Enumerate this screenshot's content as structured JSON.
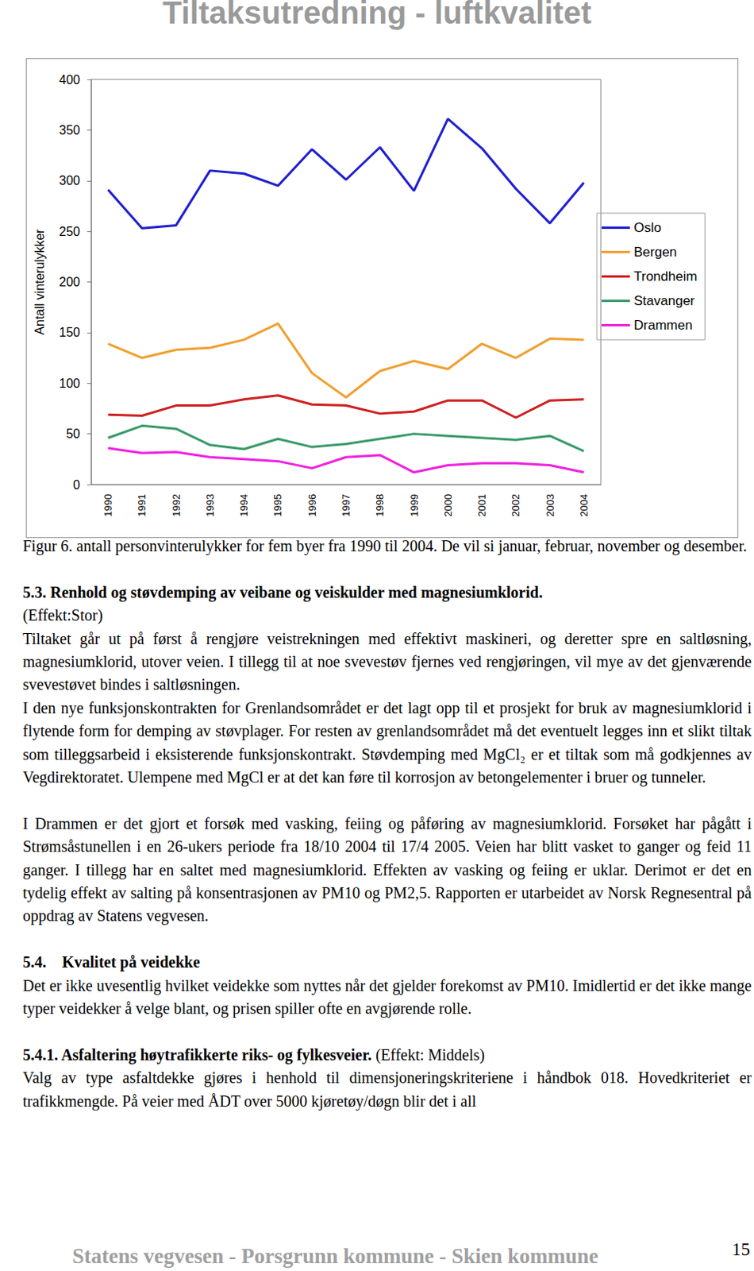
{
  "header": {
    "title": "Tiltaksutredning - luftkvalitet"
  },
  "chart_data": {
    "type": "line",
    "y_label": "Antall vinterulykker",
    "categories": [
      "1990",
      "1991",
      "1992",
      "1993",
      "1994",
      "1995",
      "1996",
      "1997",
      "1998",
      "1999",
      "2000",
      "2001",
      "2002",
      "2003",
      "2004"
    ],
    "series": [
      {
        "name": "Oslo",
        "color": "#1f1fd0",
        "values": [
          291,
          253,
          256,
          310,
          307,
          295,
          331,
          301,
          333,
          290,
          361,
          332,
          292,
          258,
          298
        ]
      },
      {
        "name": "Bergen",
        "color": "#f0a030",
        "values": [
          139,
          125,
          133,
          135,
          143,
          159,
          110,
          86,
          112,
          122,
          114,
          139,
          125,
          144,
          143
        ]
      },
      {
        "name": "Trondheim",
        "color": "#d02020",
        "values": [
          69,
          68,
          78,
          78,
          84,
          88,
          79,
          78,
          70,
          72,
          83,
          83,
          66,
          83,
          84
        ]
      },
      {
        "name": "Stavanger",
        "color": "#3a9a6a",
        "values": [
          46,
          58,
          55,
          39,
          35,
          45,
          37,
          40,
          45,
          50,
          48,
          46,
          44,
          48,
          33
        ]
      },
      {
        "name": "Drammen",
        "color": "#f020e0",
        "values": [
          36,
          31,
          32,
          27,
          25,
          23,
          16,
          27,
          29,
          12,
          19,
          21,
          21,
          19,
          12
        ]
      }
    ],
    "ylim": [
      0,
      400
    ],
    "yticks": [
      0,
      50,
      100,
      150,
      200,
      250,
      300,
      350,
      400
    ],
    "grid": false,
    "legend": "right"
  },
  "groups": [
    [
      {
        "text": "Figur 6. antall personvinterulykker for fem byer fra 1990 til 2004. De vil si januar, februar, november og desember."
      }
    ],
    [
      {
        "heading": "5.3. Renhold og støvdemping av veibane og veiskulder med magnesiumklorid."
      },
      {
        "text": "(Effekt:Stor)"
      },
      {
        "text": "Tiltaket går ut på først å rengjøre veistrekningen med effektivt maskineri, og deretter spre en saltløsning, magnesiumklorid, utover veien. I tillegg til at noe svevestøv fjernes ved rengjøringen, vil mye av det gjenværende svevestøvet bindes i saltløsningen."
      },
      {
        "text": "I den nye funksjonskontrakten for Grenlandsområdet er det lagt opp til et prosjekt for bruk av magnesiumklorid i flytende form for demping av støvplager. For resten av grenlandsområdet må det eventuelt legges inn et slikt tiltak som tilleggsarbeid i eksisterende funksjonskontrakt. Støvdemping med MgCl₂ er et tiltak som må godkjennes av Vegdirektoratet. Ulempene med MgCl er at det kan føre til korrosjon av betongelementer i bruer og tunneler."
      }
    ],
    [
      {
        "text": "I Drammen er det gjort et forsøk med vasking, feiing og påføring av magnesiumklorid. Forsøket har pågått i Strømsåstunellen i en 26-ukers periode fra 18/10 2004 til 17/4 2005. Veien har blitt vasket to ganger og feid 11 ganger. I tillegg har en saltet med magnesiumklorid. Effekten av vasking og feiing er uklar. Derimot er det en tydelig effekt av salting på konsentrasjonen av PM10 og PM2,5. Rapporten er utarbeidet av Norsk Regnesentral på oppdrag av Statens vegvesen."
      }
    ],
    [
      {
        "heading": "5.4.    Kvalitet på veidekke"
      },
      {
        "text": "Det er ikke uvesentlig hvilket veidekke som nyttes når det gjelder forekomst av PM10. Imidlertid er det ikke mange typer veidekker å velge blant, og prisen spiller ofte en avgjørende rolle."
      }
    ],
    [
      {
        "heading": "5.4.1. Asfaltering høytrafikkerte riks- og fylkesveier.",
        "note": "(Effekt: Middels)"
      },
      {
        "text": "Valg av type asfaltdekke gjøres i henhold til dimensjoneringskriteriene i håndbok 018. Hovedkriteriet er trafikkmengde. På veier med ÅDT over 5000 kjøretøy/døgn blir det i all"
      }
    ]
  ],
  "footer": {
    "text": "Statens vegvesen - Porsgrunn kommune - Skien kommune",
    "page": "15"
  }
}
